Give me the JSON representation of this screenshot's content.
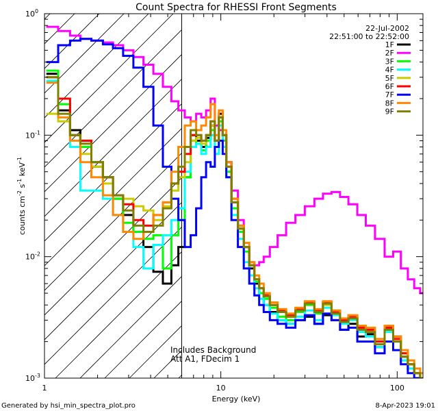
{
  "chart_data": {
    "type": "line",
    "step": true,
    "title": "Count Spectra for RHESSI Front Segments",
    "xlabel": "Energy (keV)",
    "ylabel": {
      "base": "counts cm",
      "exp1": "-2",
      "mid1": " s",
      "exp2": "-1",
      "mid2": " keV",
      "exp3": "-1"
    },
    "x_scale": "log",
    "y_scale": "log",
    "xlim": [
      1,
      140
    ],
    "ylim": [
      0.001,
      1
    ],
    "x_ticks": [
      {
        "value": 1,
        "label": "1"
      },
      {
        "value": 10,
        "label": "10"
      },
      {
        "value": 100,
        "label": "100"
      }
    ],
    "y_ticks": [
      {
        "value": 1,
        "base": "10",
        "exp": "0"
      },
      {
        "value": 0.1,
        "base": "10",
        "exp": "-1"
      },
      {
        "value": 0.01,
        "base": "10",
        "exp": "-2"
      },
      {
        "value": 0.001,
        "base": "10",
        "exp": "-3"
      }
    ],
    "hatch_region": [
      1,
      6
    ],
    "date": "22-Jul-2002",
    "time_range": "22:51:00 to 22:52:00",
    "annotations": [
      "Includes Background",
      "Att A1, FDecim 1"
    ],
    "legend_position": "top-right",
    "series": [
      {
        "name": "1F",
        "color": "#000000",
        "x": [
          1.1,
          1.3,
          1.5,
          1.7,
          2.0,
          2.3,
          2.6,
          3.0,
          3.4,
          3.9,
          4.4,
          5.0,
          5.5,
          6.0,
          6.5,
          7.0,
          7.5,
          8.0,
          8.5,
          9.0,
          9.5,
          10,
          10.5,
          11,
          12,
          13,
          14,
          15,
          16,
          17,
          18,
          20,
          22,
          25,
          28,
          32,
          36,
          40,
          45,
          50,
          56,
          63,
          70,
          80,
          90,
          100,
          110,
          120,
          130,
          140
        ],
        "y": [
          0.32,
          0.16,
          0.11,
          0.09,
          0.055,
          0.045,
          0.03,
          0.022,
          0.016,
          0.012,
          0.0075,
          0.006,
          0.0085,
          0.012,
          0.045,
          0.1,
          0.09,
          0.08,
          0.095,
          0.12,
          0.09,
          0.15,
          0.1,
          0.06,
          0.03,
          0.018,
          0.012,
          0.008,
          0.006,
          0.005,
          0.004,
          0.0035,
          0.003,
          0.0028,
          0.003,
          0.0032,
          0.0028,
          0.0033,
          0.003,
          0.0025,
          0.0028,
          0.0022,
          0.0023,
          0.0018,
          0.0025,
          0.0022,
          0.0015,
          0.0012,
          0.0011,
          0.001
        ]
      },
      {
        "name": "2F",
        "color": "#ff00ff",
        "x": [
          1.1,
          1.3,
          1.5,
          1.7,
          2.0,
          2.3,
          2.6,
          3.0,
          3.4,
          3.9,
          4.4,
          5.0,
          5.5,
          6.0,
          6.5,
          7.0,
          7.5,
          8.0,
          8.5,
          9.0,
          9.5,
          10,
          10.5,
          11,
          12,
          13,
          14,
          15,
          16,
          17,
          18,
          20,
          22,
          25,
          28,
          32,
          36,
          40,
          45,
          50,
          56,
          63,
          70,
          80,
          90,
          100,
          110,
          120,
          130,
          140
        ],
        "y": [
          0.78,
          0.72,
          0.66,
          0.62,
          0.6,
          0.58,
          0.55,
          0.5,
          0.44,
          0.38,
          0.32,
          0.25,
          0.19,
          0.16,
          0.14,
          0.13,
          0.15,
          0.14,
          0.16,
          0.2,
          0.12,
          0.11,
          0.09,
          0.06,
          0.035,
          0.02,
          0.012,
          0.009,
          0.0085,
          0.009,
          0.01,
          0.012,
          0.015,
          0.019,
          0.022,
          0.026,
          0.03,
          0.033,
          0.034,
          0.031,
          0.027,
          0.022,
          0.018,
          0.014,
          0.01,
          0.011,
          0.008,
          0.0065,
          0.0055,
          0.005
        ]
      },
      {
        "name": "3F",
        "color": "#00ff00",
        "x": [
          1.1,
          1.3,
          1.5,
          1.7,
          2.0,
          2.3,
          2.6,
          3.0,
          3.4,
          3.9,
          4.4,
          5.0,
          5.5,
          6.0,
          6.5,
          7.0,
          7.5,
          8.0,
          8.5,
          9.0,
          9.5,
          10,
          10.5,
          11,
          12,
          13,
          14,
          15,
          16,
          17,
          18,
          20,
          22,
          25,
          28,
          32,
          36,
          40,
          45,
          50,
          56,
          63,
          70,
          80,
          90,
          100,
          110,
          120,
          130,
          140
        ],
        "y": [
          0.34,
          0.18,
          0.1,
          0.08,
          0.06,
          0.045,
          0.03,
          0.019,
          0.016,
          0.014,
          0.015,
          0.008,
          0.015,
          0.02,
          0.045,
          0.09,
          0.085,
          0.075,
          0.09,
          0.11,
          0.08,
          0.13,
          0.09,
          0.05,
          0.025,
          0.016,
          0.011,
          0.0085,
          0.0062,
          0.005,
          0.0045,
          0.0038,
          0.0032,
          0.003,
          0.0035,
          0.004,
          0.0034,
          0.0042,
          0.0036,
          0.003,
          0.0032,
          0.0026,
          0.0025,
          0.002,
          0.0026,
          0.0021,
          0.0016,
          0.0013,
          0.0011,
          0.001
        ]
      },
      {
        "name": "4F",
        "color": "#00ffff",
        "x": [
          1.1,
          1.3,
          1.5,
          1.7,
          2.0,
          2.3,
          2.6,
          3.0,
          3.4,
          3.9,
          4.4,
          5.0,
          5.5,
          6.0,
          6.5,
          7.0,
          7.5,
          8.0,
          8.5,
          9.0,
          9.5,
          10,
          10.5,
          11,
          12,
          13,
          14,
          15,
          16,
          17,
          18,
          20,
          22,
          25,
          28,
          32,
          36,
          40,
          45,
          50,
          56,
          63,
          70,
          80,
          90,
          100,
          110,
          120,
          130,
          140
        ],
        "y": [
          0.28,
          0.13,
          0.08,
          0.035,
          0.035,
          0.03,
          0.022,
          0.016,
          0.012,
          0.008,
          0.0125,
          0.015,
          0.02,
          0.025,
          0.05,
          0.08,
          0.085,
          0.07,
          0.08,
          0.1,
          0.07,
          0.12,
          0.08,
          0.045,
          0.022,
          0.014,
          0.009,
          0.007,
          0.0055,
          0.0045,
          0.004,
          0.0034,
          0.003,
          0.0028,
          0.0032,
          0.0036,
          0.003,
          0.0038,
          0.0033,
          0.0028,
          0.003,
          0.0024,
          0.0022,
          0.0018,
          0.0024,
          0.002,
          0.0014,
          0.0012,
          0.0011,
          0.001
        ]
      },
      {
        "name": "5F",
        "color": "#cccc00",
        "x": [
          1.1,
          1.3,
          1.5,
          1.7,
          2.0,
          2.3,
          2.6,
          3.0,
          3.4,
          3.9,
          4.4,
          5.0,
          5.5,
          6.0,
          6.5,
          7.0,
          7.5,
          8.0,
          8.5,
          9.0,
          9.5,
          10,
          10.5,
          11,
          12,
          13,
          14,
          15,
          16,
          17,
          18,
          20,
          22,
          25,
          28,
          32,
          36,
          40,
          45,
          50,
          56,
          63,
          70,
          80,
          90,
          100,
          110,
          120,
          130,
          140
        ],
        "y": [
          0.15,
          0.13,
          0.1,
          0.07,
          0.055,
          0.04,
          0.032,
          0.03,
          0.026,
          0.024,
          0.02,
          0.026,
          0.035,
          0.045,
          0.06,
          0.09,
          0.095,
          0.085,
          0.1,
          0.12,
          0.09,
          0.14,
          0.1,
          0.055,
          0.028,
          0.017,
          0.012,
          0.0085,
          0.0065,
          0.0055,
          0.0048,
          0.004,
          0.0035,
          0.0032,
          0.0036,
          0.0041,
          0.0035,
          0.004,
          0.0034,
          0.0029,
          0.0031,
          0.0025,
          0.0024,
          0.0019,
          0.0025,
          0.0021,
          0.0015,
          0.0013,
          0.0011,
          0.001
        ]
      },
      {
        "name": "6F",
        "color": "#ff0000",
        "x": [
          1.1,
          1.3,
          1.5,
          1.7,
          2.0,
          2.3,
          2.6,
          3.0,
          3.4,
          3.9,
          4.4,
          5.0,
          5.5,
          6.0,
          6.5,
          7.0,
          7.5,
          8.0,
          8.5,
          9.0,
          9.5,
          10,
          10.5,
          11,
          12,
          13,
          14,
          15,
          16,
          17,
          18,
          20,
          22,
          25,
          28,
          32,
          36,
          40,
          45,
          50,
          56,
          63,
          70,
          80,
          90,
          100,
          110,
          120,
          130,
          140
        ],
        "y": [
          0.3,
          0.2,
          0.1,
          0.09,
          0.06,
          0.045,
          0.032,
          0.027,
          0.02,
          0.018,
          0.022,
          0.028,
          0.04,
          0.05,
          0.07,
          0.1,
          0.1,
          0.09,
          0.1,
          0.13,
          0.09,
          0.14,
          0.1,
          0.055,
          0.028,
          0.017,
          0.012,
          0.0085,
          0.0065,
          0.0055,
          0.0048,
          0.004,
          0.0036,
          0.0033,
          0.0037,
          0.0042,
          0.0036,
          0.0042,
          0.0035,
          0.003,
          0.0032,
          0.0026,
          0.0025,
          0.002,
          0.0026,
          0.0021,
          0.0016,
          0.0013,
          0.0011,
          0.001
        ]
      },
      {
        "name": "7F",
        "color": "#0000ff",
        "x": [
          1.1,
          1.3,
          1.5,
          1.7,
          2.0,
          2.3,
          2.6,
          3.0,
          3.4,
          3.9,
          4.4,
          5.0,
          5.5,
          6.0,
          6.5,
          7.0,
          7.5,
          8.0,
          8.5,
          9.0,
          9.5,
          10,
          10.5,
          11,
          12,
          13,
          14,
          15,
          16,
          17,
          18,
          20,
          22,
          25,
          28,
          32,
          36,
          40,
          45,
          50,
          56,
          63,
          70,
          80,
          90,
          100,
          110,
          120,
          130,
          140
        ],
        "y": [
          0.4,
          0.55,
          0.6,
          0.62,
          0.6,
          0.56,
          0.52,
          0.45,
          0.36,
          0.25,
          0.12,
          0.055,
          0.03,
          0.02,
          0.012,
          0.015,
          0.025,
          0.045,
          0.06,
          0.055,
          0.08,
          0.09,
          0.07,
          0.045,
          0.02,
          0.012,
          0.008,
          0.006,
          0.0048,
          0.004,
          0.0035,
          0.003,
          0.0028,
          0.0026,
          0.003,
          0.0033,
          0.0028,
          0.0034,
          0.003,
          0.0025,
          0.0026,
          0.002,
          0.002,
          0.0016,
          0.002,
          0.0017,
          0.0013,
          0.0011,
          0.001,
          0.001
        ]
      },
      {
        "name": "8F",
        "color": "#ff8800",
        "x": [
          1.1,
          1.3,
          1.5,
          1.7,
          2.0,
          2.3,
          2.6,
          3.0,
          3.4,
          3.9,
          4.4,
          5.0,
          5.5,
          6.0,
          6.5,
          7.0,
          7.5,
          8.0,
          8.5,
          9.0,
          9.5,
          10,
          10.5,
          11,
          12,
          13,
          14,
          15,
          16,
          17,
          18,
          20,
          22,
          25,
          28,
          32,
          36,
          40,
          45,
          50,
          56,
          63,
          70,
          80,
          90,
          100,
          110,
          120,
          130,
          140
        ],
        "y": [
          0.27,
          0.14,
          0.09,
          0.06,
          0.045,
          0.032,
          0.022,
          0.016,
          0.014,
          0.016,
          0.022,
          0.028,
          0.05,
          0.08,
          0.12,
          0.13,
          0.11,
          0.12,
          0.14,
          0.18,
          0.1,
          0.16,
          0.11,
          0.06,
          0.03,
          0.018,
          0.013,
          0.009,
          0.007,
          0.006,
          0.005,
          0.0042,
          0.0037,
          0.0034,
          0.0038,
          0.0043,
          0.0037,
          0.0043,
          0.0036,
          0.0031,
          0.0033,
          0.0027,
          0.0026,
          0.0021,
          0.0027,
          0.0022,
          0.0017,
          0.0014,
          0.0012,
          0.0011
        ]
      },
      {
        "name": "9F",
        "color": "#808000",
        "x": [
          1.1,
          1.3,
          1.5,
          1.7,
          2.0,
          2.3,
          2.6,
          3.0,
          3.4,
          3.9,
          4.4,
          5.0,
          5.5,
          6.0,
          6.5,
          7.0,
          7.5,
          8.0,
          8.5,
          9.0,
          9.5,
          10,
          10.5,
          11,
          12,
          13,
          14,
          15,
          16,
          17,
          18,
          20,
          22,
          25,
          28,
          32,
          36,
          40,
          45,
          50,
          56,
          63,
          70,
          80,
          90,
          100,
          110,
          120,
          130,
          140
        ],
        "y": [
          0.3,
          0.15,
          0.1,
          0.085,
          0.06,
          0.045,
          0.032,
          0.024,
          0.018,
          0.016,
          0.018,
          0.025,
          0.04,
          0.055,
          0.08,
          0.11,
          0.1,
          0.09,
          0.1,
          0.13,
          0.09,
          0.14,
          0.1,
          0.055,
          0.028,
          0.017,
          0.012,
          0.0085,
          0.0065,
          0.0055,
          0.0047,
          0.004,
          0.0035,
          0.0032,
          0.0036,
          0.0041,
          0.0035,
          0.0041,
          0.0034,
          0.0029,
          0.0031,
          0.0025,
          0.0024,
          0.0019,
          0.0025,
          0.002,
          0.0015,
          0.0013,
          0.0011,
          0.001
        ]
      }
    ]
  },
  "footer": {
    "left": "Generated by hsi_min_spectra_plot.pro",
    "right": "8-Apr-2023 19:01"
  }
}
